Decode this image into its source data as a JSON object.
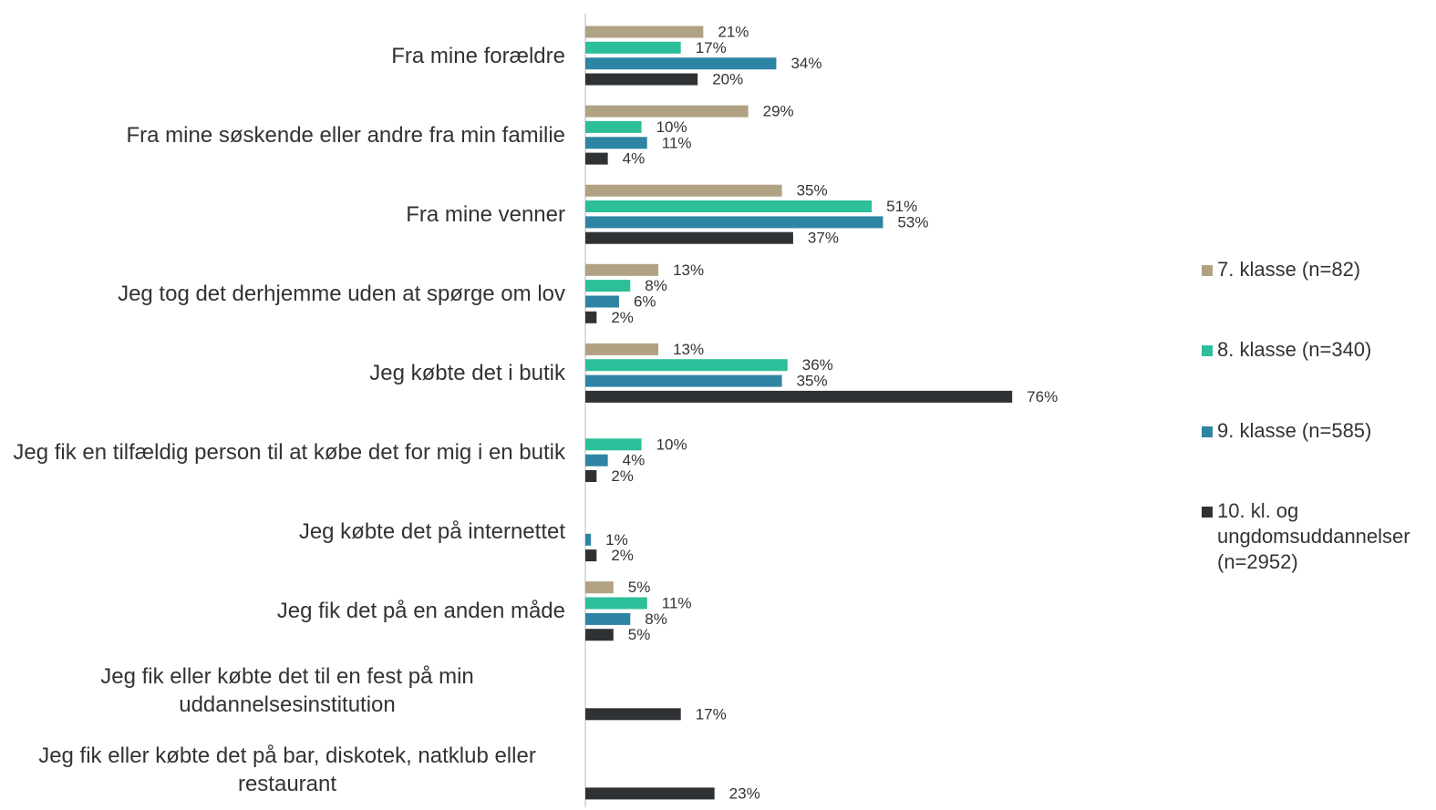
{
  "chart_data": {
    "type": "hbar",
    "categories": [
      "Fra mine forældre",
      "Fra mine søskende eller andre fra min familie",
      "Fra mine venner",
      "Jeg tog det derhjemme uden at spørge om lov",
      "Jeg købte det i butik",
      "Jeg fik en tilfældig person til at købe det for mig i en butik",
      "Jeg købte det på internettet",
      "Jeg fik det på en anden måde",
      "Jeg fik eller købte det til en fest på min uddannelsesinstitution",
      "Jeg fik eller købte det på bar, diskotek, natklub eller restaurant"
    ],
    "series": [
      {
        "name": "7. klasse (n=82)",
        "color": "#b0a283",
        "values": [
          21,
          29,
          35,
          13,
          13,
          null,
          null,
          5,
          null,
          null
        ],
        "value_labels": [
          "21%",
          "29%",
          "35%",
          "13%",
          "13%",
          null,
          null,
          "5%",
          null,
          null
        ]
      },
      {
        "name": "8. klasse (n=340)",
        "color": "#2dbf99",
        "values": [
          17,
          10,
          51,
          8,
          36,
          10,
          null,
          11,
          null,
          null
        ],
        "value_labels": [
          "17%",
          "10%",
          "51%",
          "8%",
          "36%",
          "10%",
          null,
          "11%",
          null,
          null
        ]
      },
      {
        "name": "9. klasse (n=585)",
        "color": "#2e84a3",
        "values": [
          34,
          11,
          53,
          6,
          35,
          4,
          1,
          8,
          null,
          null
        ],
        "value_labels": [
          "34%",
          "11%",
          "53%",
          "6%",
          "35%",
          "4%",
          "1%",
          "8%",
          null,
          null
        ]
      },
      {
        "name": "10. kl. og ungdomsuddannelser (n=2952)",
        "color": "#2f3235",
        "values": [
          20,
          4,
          37,
          2,
          76,
          2,
          2,
          5,
          17,
          23
        ],
        "value_labels": [
          "20%",
          "4%",
          "37%",
          "2%",
          "76%",
          "2%",
          "2%",
          "5%",
          "17%",
          "23%"
        ]
      }
    ],
    "legend": "right"
  }
}
